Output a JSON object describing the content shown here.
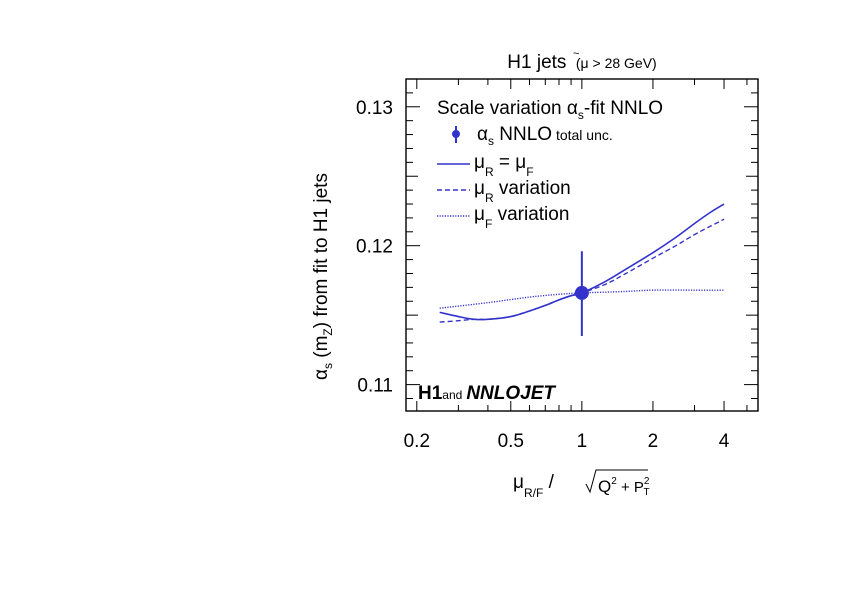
{
  "chart_data": {
    "type": "line",
    "title": "H1 jets",
    "subtitle": "(μ̃ > 28 GeV)",
    "title_parts": {
      "main": "H1 jets",
      "open": "(",
      "mu": "μ",
      "rest": " > 28 GeV)"
    },
    "xlabel": {
      "mu": "μ",
      "sub": "R/F",
      "slash": " / ",
      "Q": "Q",
      "sup1": "2",
      "plus": " + P",
      "sup2": "2",
      "sub2": "T"
    },
    "ylabel": {
      "alpha": "α",
      "sub": "s",
      "rest1": " (m",
      "sub2": "Z",
      "rest2": ") from fit to H1 jets"
    },
    "xscale": "log",
    "xlim": [
      0.18,
      5.57
    ],
    "ylim": [
      0.1081,
      0.132
    ],
    "xticks": [
      0.2,
      0.5,
      1,
      2,
      4
    ],
    "xtick_labels": [
      "0.2",
      "0.5",
      "1",
      "2",
      "4"
    ],
    "yticks": [
      0.11,
      0.12,
      0.13
    ],
    "ytick_labels": [
      "0.11",
      "0.12",
      "0.13"
    ],
    "grid": false,
    "legend": {
      "placement": "top-left",
      "title": {
        "a": "Scale variation ",
        "alpha": "α",
        "sub": "s",
        "b": "-fit NNLO"
      },
      "entries": [
        {
          "sym": "α",
          "sub": "s",
          "label": " NNLO",
          "small": " total unc."
        },
        {
          "sym": "μ",
          "sub": "R",
          "label": " = μ",
          "sub2": "F"
        },
        {
          "sym": "μ",
          "sub": "R",
          "label": " variation"
        },
        {
          "sym": "μ",
          "sub": "F",
          "label": " variation"
        }
      ]
    },
    "annotation": {
      "bold": "H1",
      "small": "and",
      "italic": "NNLOJET"
    },
    "point": {
      "x": 1,
      "y": 0.1166,
      "err_low": 0.1135,
      "err_high": 0.1196
    },
    "series": [
      {
        "name": "μR = μF",
        "style": "solid",
        "x": [
          0.25,
          0.3,
          0.35,
          0.4,
          0.5,
          0.6,
          0.7,
          0.8,
          0.9,
          1,
          1.25,
          1.5,
          2,
          2.5,
          3,
          3.5,
          4
        ],
        "y": [
          0.1152,
          0.1149,
          0.1147,
          0.1147,
          0.1149,
          0.1153,
          0.1157,
          0.1161,
          0.1164,
          0.1166,
          0.1174,
          0.1182,
          0.1195,
          0.1206,
          0.1216,
          0.1224,
          0.123
        ]
      },
      {
        "name": "μR variation",
        "style": "dashed",
        "x": [
          0.25,
          0.3,
          0.35,
          0.4,
          0.5,
          0.6,
          0.7,
          0.8,
          0.9,
          1,
          1.25,
          1.5,
          2,
          2.5,
          3,
          3.5,
          4
        ],
        "y": [
          0.1145,
          0.1146,
          0.1147,
          0.1147,
          0.1149,
          0.1153,
          0.1157,
          0.1161,
          0.1164,
          0.1166,
          0.1172,
          0.1179,
          0.1191,
          0.12,
          0.1208,
          0.1214,
          0.1219
        ]
      },
      {
        "name": "μF variation",
        "style": "dotted",
        "x": [
          0.25,
          0.4,
          0.6,
          0.8,
          1,
          1.5,
          2,
          3,
          4
        ],
        "y": [
          0.1155,
          0.1159,
          0.1163,
          0.1165,
          0.1166,
          0.1167,
          0.1168,
          0.1168,
          0.1168
        ]
      }
    ],
    "color": "#3333cc"
  }
}
